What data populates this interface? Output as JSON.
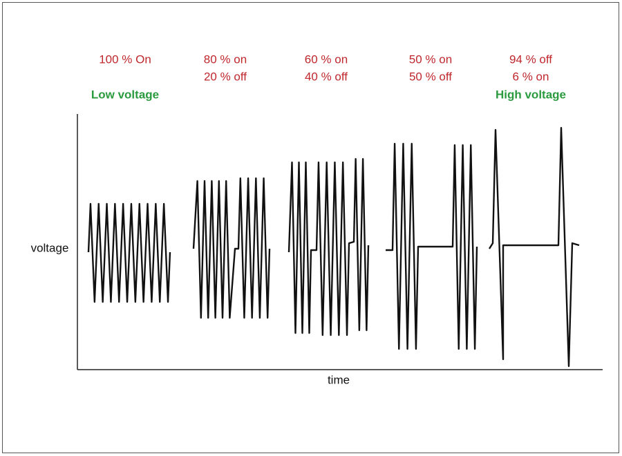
{
  "groups": [
    {
      "lines": [
        "100 % On"
      ],
      "note": "Low voltage"
    },
    {
      "lines": [
        "80 % on",
        "20 % off"
      ]
    },
    {
      "lines": [
        "60 % on",
        "40 % off"
      ]
    },
    {
      "lines": [
        "50 % on",
        "50 % off"
      ]
    },
    {
      "lines": [
        "94 % off",
        "6 % on"
      ],
      "note": "High voltage"
    }
  ],
  "axes": {
    "y": "voltage",
    "x": "time"
  }
}
